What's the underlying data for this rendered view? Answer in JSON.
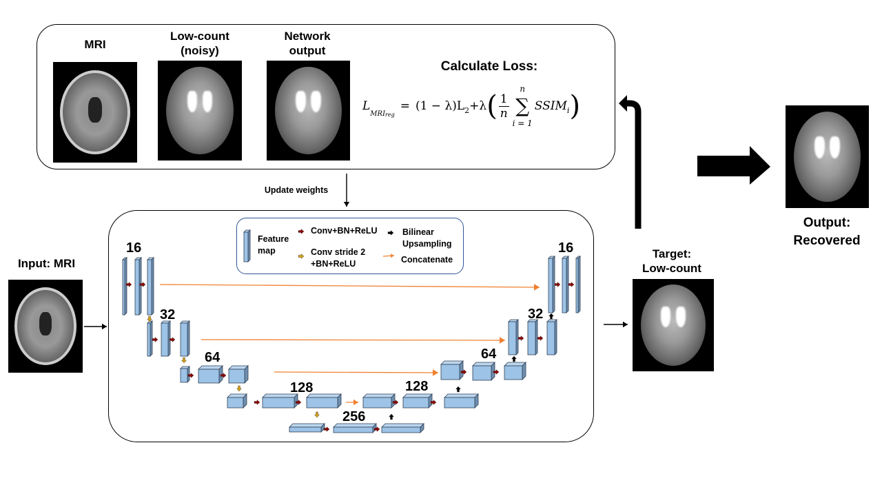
{
  "top_panel": {
    "images": [
      {
        "label": "MRI",
        "kind": "mri"
      },
      {
        "label": "Low-count\n(noisy)",
        "kind": "pet-noisy"
      },
      {
        "label": "Network\noutput",
        "kind": "pet"
      }
    ],
    "loss_title": "Calculate Loss:",
    "formula": {
      "lhs": "L",
      "lhs_sub": "MRI",
      "lhs_subsub": "reg",
      "eq": "=",
      "term1": "(1 − λ)L",
      "term1_sub": "2",
      "plus": "+λ",
      "frac_num": "1",
      "frac_den": "n",
      "sum_top": "n",
      "sum_bottom": "i = 1",
      "ssim": "SSIM",
      "ssim_sub": "i"
    }
  },
  "update_weights": "Update weights",
  "legend": {
    "feature_map": "Feature\nmap",
    "conv": "Conv+BN+ReLU",
    "conv_stride": "Conv stride 2\n+BN+ReLU",
    "upsampling": "Bilinear\nUpsampling",
    "concatenate": "Concatenate",
    "colors": {
      "conv": "#8b0000",
      "stride": "#d4a017",
      "upsample": "#000000",
      "concat": "#f08030",
      "feature": "#9dc3e6"
    }
  },
  "unet": {
    "channels_left": [
      "16",
      "32",
      "64",
      "128"
    ],
    "bottleneck": "256",
    "channels_right": [
      "128",
      "64",
      "32",
      "16"
    ]
  },
  "input_label": "Input: MRI",
  "target_label": "Target:\nLow-count",
  "output_label": "Output:\nRecovered"
}
